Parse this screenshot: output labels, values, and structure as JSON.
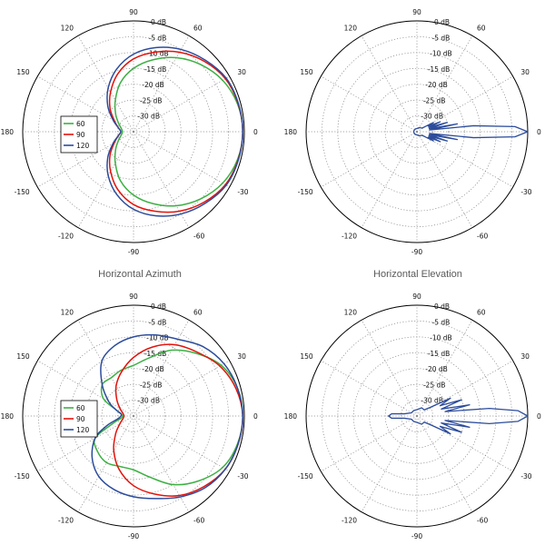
{
  "captions": {
    "top_left": "Horizontal Azimuth",
    "top_right": "Horizontal Elevation"
  },
  "colors": {
    "grid": "#888888",
    "ring": "#000000",
    "green": "#3cb043",
    "red": "#e3120b",
    "blue": "#2c4c9c"
  },
  "chart_data": [
    {
      "id": "p1",
      "type": "polar",
      "angle_ticks": [
        "0",
        "30",
        "60",
        "90",
        "120",
        "150",
        "180",
        "-150",
        "-120",
        "-90",
        "-60",
        "-30"
      ],
      "radial_ticks": [
        "0 dB",
        "-5 dB",
        "-10 dB",
        "-15 dB",
        "-20 dB",
        "-25 dB",
        "-30 dB"
      ],
      "rlim": [
        -35,
        0
      ],
      "legend": {
        "placement": "left",
        "entries": [
          "60",
          "90",
          "120"
        ]
      },
      "series": [
        {
          "name": "60",
          "color": "green",
          "theta": [
            0,
            15,
            30,
            45,
            60,
            75,
            90,
            105,
            120,
            135,
            150,
            165,
            180,
            -165,
            -150,
            -135,
            -120,
            -105,
            -90,
            -75,
            -60,
            -45,
            -30,
            -15
          ],
          "r": [
            -0.5,
            -1,
            -2.5,
            -5,
            -8,
            -11.5,
            -15,
            -19,
            -23.5,
            -27,
            -29.5,
            -31,
            -31.5,
            -31,
            -29.5,
            -27,
            -23.5,
            -19,
            -15,
            -11.5,
            -8,
            -5,
            -2.5,
            -1
          ]
        },
        {
          "name": "90",
          "color": "red",
          "theta": [
            0,
            15,
            30,
            45,
            60,
            75,
            90,
            105,
            120,
            135,
            150,
            165,
            180,
            -165,
            -150,
            -135,
            -120,
            -105,
            -90,
            -75,
            -60,
            -45,
            -30,
            -15
          ],
          "r": [
            -0.5,
            -0.8,
            -1.5,
            -3.5,
            -6,
            -9,
            -12,
            -16,
            -20.5,
            -24.5,
            -28,
            -30,
            -31,
            -30,
            -28,
            -24.5,
            -20.5,
            -16,
            -12,
            -9,
            -6,
            -3.5,
            -1.5,
            -0.8
          ]
        },
        {
          "name": "120",
          "color": "blue",
          "theta": [
            0,
            15,
            30,
            45,
            60,
            75,
            90,
            105,
            120,
            135,
            150,
            165,
            180,
            -165,
            -150,
            -135,
            -120,
            -105,
            -90,
            -75,
            -60,
            -45,
            -30,
            -15
          ],
          "r": [
            -0.5,
            -0.7,
            -1.2,
            -3,
            -5,
            -7.5,
            -10.5,
            -14.5,
            -19,
            -23.5,
            -27.5,
            -30,
            -31,
            -30,
            -27.5,
            -23.5,
            -19,
            -14.5,
            -10.5,
            -7.5,
            -5,
            -3,
            -1.2,
            -0.7
          ]
        }
      ]
    },
    {
      "id": "p2",
      "type": "polar",
      "angle_ticks": [
        "0",
        "30",
        "60",
        "90",
        "120",
        "150",
        "180",
        "-150",
        "-120",
        "-90",
        "-60",
        "-30"
      ],
      "radial_ticks": [
        "0 dB",
        "-5 dB",
        "-10 dB",
        "-15 dB",
        "-20 dB",
        "-25 dB",
        "-30 dB"
      ],
      "rlim": [
        -35,
        0
      ],
      "series": [
        {
          "name": "",
          "color": "blue",
          "lobes": true,
          "theta": [
            0,
            3,
            6,
            8,
            11,
            14,
            17,
            20,
            23,
            26,
            29,
            32,
            35,
            60,
            90,
            120,
            150,
            180,
            -150,
            -120,
            -90,
            -60,
            -35,
            -32,
            -29,
            -26,
            -23,
            -20,
            -17,
            -14,
            -11,
            -8,
            -6,
            -3
          ],
          "r": [
            0,
            -4,
            -17,
            -31,
            -22,
            -31,
            -25,
            -31,
            -27,
            -31,
            -29,
            -32,
            -33,
            -33.5,
            -34,
            -34,
            -34,
            -34,
            -34,
            -34,
            -34,
            -33.5,
            -33,
            -32,
            -29,
            -31,
            -27,
            -31,
            -25,
            -31,
            -22,
            -31,
            -17,
            -4
          ]
        }
      ]
    },
    {
      "id": "p3",
      "type": "polar",
      "angle_ticks": [
        "0",
        "30",
        "60",
        "90",
        "120",
        "150",
        "180",
        "-150",
        "-120",
        "-90",
        "-60",
        "-30"
      ],
      "radial_ticks": [
        "0 dB",
        "-5 dB",
        "-10 dB",
        "-15 dB",
        "-20 dB",
        "-25 dB",
        "-30 dB"
      ],
      "rlim": [
        -35,
        0
      ],
      "legend": {
        "placement": "left",
        "entries": [
          "60",
          "90",
          "120"
        ]
      },
      "series": [
        {
          "name": "60",
          "color": "green",
          "theta": [
            0,
            15,
            30,
            45,
            60,
            75,
            90,
            105,
            120,
            135,
            150,
            160,
            170,
            180,
            -170,
            -160,
            -150,
            -135,
            -120,
            -105,
            -90,
            -75,
            -60,
            -45,
            -30,
            -15
          ],
          "r": [
            -0.5,
            -1,
            -3,
            -7,
            -11,
            -16,
            -19,
            -20,
            -21,
            -21,
            -24,
            -29,
            -31,
            -31.5,
            -31,
            -28,
            -21,
            -19,
            -18,
            -18.5,
            -18,
            -15,
            -10,
            -6,
            -2.5,
            -1
          ]
        },
        {
          "name": "90",
          "color": "red",
          "theta": [
            0,
            15,
            30,
            45,
            60,
            75,
            90,
            105,
            120,
            135,
            150,
            165,
            180,
            -165,
            -150,
            -135,
            -120,
            -105,
            -90,
            -75,
            -60,
            -45,
            -30,
            -15
          ],
          "r": [
            -0.5,
            -1.5,
            -3.5,
            -6.5,
            -9,
            -12.5,
            -16.5,
            -20.5,
            -24,
            -27.5,
            -30,
            -31.5,
            -32,
            -31.5,
            -30,
            -27,
            -22.5,
            -17.5,
            -13,
            -9.5,
            -6,
            -3.5,
            -1.5,
            -0.8
          ]
        },
        {
          "name": "120",
          "color": "blue",
          "theta": [
            0,
            15,
            30,
            45,
            60,
            75,
            90,
            105,
            120,
            135,
            150,
            160,
            170,
            180,
            -170,
            -160,
            -150,
            -135,
            -120,
            -105,
            -90,
            -75,
            -60,
            -45,
            -30,
            -15
          ],
          "r": [
            -0.5,
            -1,
            -2,
            -4,
            -7,
            -8.5,
            -10,
            -12,
            -15,
            -21,
            -26,
            -29,
            -31,
            -31,
            -30,
            -26,
            -21,
            -16.5,
            -13,
            -11,
            -9.5,
            -8,
            -5.5,
            -3,
            -1.5,
            -0.8
          ]
        }
      ]
    },
    {
      "id": "p4",
      "type": "polar",
      "angle_ticks": [
        "0",
        "30",
        "60",
        "90",
        "120",
        "150",
        "180",
        "-150",
        "-120",
        "-90",
        "-60",
        "-30"
      ],
      "radial_ticks": [
        "0 dB",
        "-5 dB",
        "-10 dB",
        "-15 dB",
        "-20 dB",
        "-25 dB",
        "-30 dB"
      ],
      "rlim": [
        -35,
        0
      ],
      "series": [
        {
          "name": "",
          "color": "blue",
          "lobes": true,
          "theta": [
            0,
            3,
            6,
            9,
            12,
            16,
            20,
            24,
            28,
            33,
            40,
            60,
            90,
            120,
            150,
            170,
            175,
            180,
            -175,
            -170,
            -150,
            -120,
            -90,
            -60,
            -40,
            -33,
            -28,
            -24,
            -20,
            -16,
            -12,
            -9,
            -6,
            -3
          ],
          "r": [
            0,
            -3,
            -12,
            -26,
            -18,
            -27,
            -20,
            -27,
            -23,
            -30,
            -32,
            -32,
            -33,
            -33,
            -33,
            -31,
            -27,
            -26,
            -27,
            -31,
            -33,
            -33,
            -33,
            -32,
            -32,
            -30,
            -23,
            -27,
            -20,
            -27,
            -18,
            -26,
            -12,
            -3
          ]
        }
      ]
    }
  ]
}
